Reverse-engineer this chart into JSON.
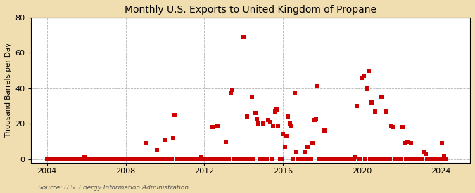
{
  "title": "Monthly U.S. Exports to United Kingdom of Propane",
  "ylabel": "Thousand Barrels per Day",
  "background_color": "#f0deb0",
  "plot_background_color": "#ffffff",
  "marker_color": "#cc0000",
  "marker_size": 14,
  "marker_shape": "s",
  "xlim": [
    2003.2,
    2025.5
  ],
  "ylim": [
    -2,
    80
  ],
  "yticks": [
    0,
    20,
    40,
    60,
    80
  ],
  "xticks": [
    2004,
    2008,
    2012,
    2016,
    2020,
    2024
  ],
  "source_text": "Source: U.S. Energy Information Administration",
  "data": [
    [
      2004.0,
      0
    ],
    [
      2004.083,
      0
    ],
    [
      2004.167,
      0
    ],
    [
      2004.25,
      0
    ],
    [
      2004.333,
      0
    ],
    [
      2004.417,
      0
    ],
    [
      2004.5,
      0
    ],
    [
      2004.583,
      0
    ],
    [
      2004.667,
      0
    ],
    [
      2004.75,
      0
    ],
    [
      2004.833,
      0
    ],
    [
      2004.917,
      0
    ],
    [
      2005.0,
      0
    ],
    [
      2005.083,
      0
    ],
    [
      2005.167,
      0
    ],
    [
      2005.25,
      0
    ],
    [
      2005.333,
      0
    ],
    [
      2005.417,
      0
    ],
    [
      2005.5,
      0
    ],
    [
      2005.583,
      0
    ],
    [
      2005.667,
      0
    ],
    [
      2005.75,
      0
    ],
    [
      2005.833,
      0
    ],
    [
      2005.917,
      1
    ],
    [
      2006.0,
      0
    ],
    [
      2006.083,
      0
    ],
    [
      2006.167,
      0
    ],
    [
      2006.25,
      0
    ],
    [
      2006.333,
      0
    ],
    [
      2006.417,
      0
    ],
    [
      2006.5,
      0
    ],
    [
      2006.583,
      0
    ],
    [
      2006.667,
      0
    ],
    [
      2006.75,
      0
    ],
    [
      2006.833,
      0
    ],
    [
      2006.917,
      0
    ],
    [
      2007.0,
      0
    ],
    [
      2007.083,
      0
    ],
    [
      2007.167,
      0
    ],
    [
      2007.25,
      0
    ],
    [
      2007.333,
      0
    ],
    [
      2007.417,
      0
    ],
    [
      2007.5,
      0
    ],
    [
      2007.583,
      0
    ],
    [
      2007.667,
      0
    ],
    [
      2007.75,
      0
    ],
    [
      2007.833,
      0
    ],
    [
      2007.917,
      0
    ],
    [
      2008.0,
      0
    ],
    [
      2008.083,
      0
    ],
    [
      2008.167,
      0
    ],
    [
      2008.25,
      0
    ],
    [
      2008.333,
      0
    ],
    [
      2008.417,
      0
    ],
    [
      2008.5,
      0
    ],
    [
      2008.583,
      0
    ],
    [
      2008.667,
      0
    ],
    [
      2008.75,
      0
    ],
    [
      2008.833,
      0
    ],
    [
      2008.917,
      0
    ],
    [
      2009.0,
      9
    ],
    [
      2009.083,
      0
    ],
    [
      2009.167,
      0
    ],
    [
      2009.25,
      0
    ],
    [
      2009.333,
      0
    ],
    [
      2009.417,
      0
    ],
    [
      2009.5,
      0
    ],
    [
      2009.583,
      5
    ],
    [
      2009.667,
      0
    ],
    [
      2009.75,
      0
    ],
    [
      2009.833,
      0
    ],
    [
      2009.917,
      0
    ],
    [
      2010.0,
      11
    ],
    [
      2010.083,
      0
    ],
    [
      2010.167,
      0
    ],
    [
      2010.25,
      0
    ],
    [
      2010.333,
      0
    ],
    [
      2010.417,
      12
    ],
    [
      2010.5,
      25
    ],
    [
      2010.583,
      0
    ],
    [
      2010.667,
      0
    ],
    [
      2010.75,
      0
    ],
    [
      2010.833,
      0
    ],
    [
      2010.917,
      0
    ],
    [
      2011.0,
      0
    ],
    [
      2011.083,
      0
    ],
    [
      2011.167,
      0
    ],
    [
      2011.25,
      0
    ],
    [
      2011.333,
      0
    ],
    [
      2011.417,
      0
    ],
    [
      2011.5,
      0
    ],
    [
      2011.583,
      0
    ],
    [
      2011.667,
      0
    ],
    [
      2011.75,
      0
    ],
    [
      2011.833,
      1
    ],
    [
      2011.917,
      0
    ],
    [
      2012.0,
      0
    ],
    [
      2012.083,
      0
    ],
    [
      2012.167,
      0
    ],
    [
      2012.25,
      0
    ],
    [
      2012.333,
      0
    ],
    [
      2012.417,
      18
    ],
    [
      2012.5,
      0
    ],
    [
      2012.583,
      0
    ],
    [
      2012.667,
      19
    ],
    [
      2012.75,
      0
    ],
    [
      2012.833,
      0
    ],
    [
      2012.917,
      0
    ],
    [
      2013.0,
      0
    ],
    [
      2013.083,
      10
    ],
    [
      2013.167,
      0
    ],
    [
      2013.25,
      0
    ],
    [
      2013.333,
      37
    ],
    [
      2013.417,
      39
    ],
    [
      2013.5,
      0
    ],
    [
      2013.583,
      0
    ],
    [
      2013.667,
      0
    ],
    [
      2013.75,
      0
    ],
    [
      2013.833,
      0
    ],
    [
      2013.917,
      0
    ],
    [
      2014.0,
      69
    ],
    [
      2014.083,
      0
    ],
    [
      2014.167,
      24
    ],
    [
      2014.25,
      0
    ],
    [
      2014.333,
      0
    ],
    [
      2014.417,
      35
    ],
    [
      2014.5,
      0
    ],
    [
      2014.583,
      26
    ],
    [
      2014.667,
      23
    ],
    [
      2014.75,
      20
    ],
    [
      2014.833,
      0
    ],
    [
      2014.917,
      0
    ],
    [
      2015.0,
      20
    ],
    [
      2015.083,
      0
    ],
    [
      2015.167,
      0
    ],
    [
      2015.25,
      22
    ],
    [
      2015.333,
      21
    ],
    [
      2015.417,
      0
    ],
    [
      2015.5,
      19
    ],
    [
      2015.583,
      27
    ],
    [
      2015.667,
      28
    ],
    [
      2015.75,
      19
    ],
    [
      2015.833,
      0
    ],
    [
      2015.917,
      0
    ],
    [
      2016.0,
      14
    ],
    [
      2016.083,
      7
    ],
    [
      2016.167,
      13
    ],
    [
      2016.25,
      24
    ],
    [
      2016.333,
      20
    ],
    [
      2016.417,
      19
    ],
    [
      2016.5,
      0
    ],
    [
      2016.583,
      37
    ],
    [
      2016.667,
      4
    ],
    [
      2016.75,
      0
    ],
    [
      2016.833,
      0
    ],
    [
      2016.917,
      0
    ],
    [
      2017.0,
      0
    ],
    [
      2017.083,
      4
    ],
    [
      2017.167,
      0
    ],
    [
      2017.25,
      7
    ],
    [
      2017.333,
      0
    ],
    [
      2017.417,
      0
    ],
    [
      2017.5,
      9
    ],
    [
      2017.583,
      22
    ],
    [
      2017.667,
      23
    ],
    [
      2017.75,
      41
    ],
    [
      2017.833,
      0
    ],
    [
      2017.917,
      0
    ],
    [
      2018.0,
      0
    ],
    [
      2018.083,
      16
    ],
    [
      2018.167,
      0
    ],
    [
      2018.25,
      0
    ],
    [
      2018.333,
      0
    ],
    [
      2018.417,
      0
    ],
    [
      2018.5,
      0
    ],
    [
      2018.583,
      0
    ],
    [
      2018.667,
      0
    ],
    [
      2018.75,
      0
    ],
    [
      2018.833,
      0
    ],
    [
      2018.917,
      0
    ],
    [
      2019.0,
      0
    ],
    [
      2019.083,
      0
    ],
    [
      2019.167,
      0
    ],
    [
      2019.25,
      0
    ],
    [
      2019.333,
      0
    ],
    [
      2019.417,
      0
    ],
    [
      2019.5,
      0
    ],
    [
      2019.583,
      0
    ],
    [
      2019.667,
      1
    ],
    [
      2019.75,
      30
    ],
    [
      2019.833,
      0
    ],
    [
      2019.917,
      0
    ],
    [
      2020.0,
      46
    ],
    [
      2020.083,
      47
    ],
    [
      2020.167,
      0
    ],
    [
      2020.25,
      40
    ],
    [
      2020.333,
      50
    ],
    [
      2020.417,
      0
    ],
    [
      2020.5,
      32
    ],
    [
      2020.583,
      0
    ],
    [
      2020.667,
      27
    ],
    [
      2020.75,
      0
    ],
    [
      2020.833,
      0
    ],
    [
      2020.917,
      0
    ],
    [
      2021.0,
      35
    ],
    [
      2021.083,
      0
    ],
    [
      2021.167,
      0
    ],
    [
      2021.25,
      27
    ],
    [
      2021.333,
      0
    ],
    [
      2021.417,
      0
    ],
    [
      2021.5,
      19
    ],
    [
      2021.583,
      18
    ],
    [
      2021.667,
      0
    ],
    [
      2021.75,
      0
    ],
    [
      2021.833,
      0
    ],
    [
      2021.917,
      0
    ],
    [
      2022.0,
      0
    ],
    [
      2022.083,
      18
    ],
    [
      2022.167,
      9
    ],
    [
      2022.25,
      0
    ],
    [
      2022.333,
      10
    ],
    [
      2022.417,
      0
    ],
    [
      2022.5,
      9
    ],
    [
      2022.583,
      0
    ],
    [
      2022.667,
      0
    ],
    [
      2022.75,
      0
    ],
    [
      2022.833,
      0
    ],
    [
      2022.917,
      0
    ],
    [
      2023.0,
      0
    ],
    [
      2023.083,
      0
    ],
    [
      2023.167,
      4
    ],
    [
      2023.25,
      3
    ],
    [
      2023.333,
      0
    ],
    [
      2023.417,
      0
    ],
    [
      2023.5,
      0
    ],
    [
      2023.583,
      0
    ],
    [
      2023.667,
      0
    ],
    [
      2023.75,
      0
    ],
    [
      2023.833,
      0
    ],
    [
      2023.917,
      0
    ],
    [
      2024.0,
      0
    ],
    [
      2024.083,
      9
    ],
    [
      2024.167,
      2
    ],
    [
      2024.25,
      0
    ]
  ]
}
